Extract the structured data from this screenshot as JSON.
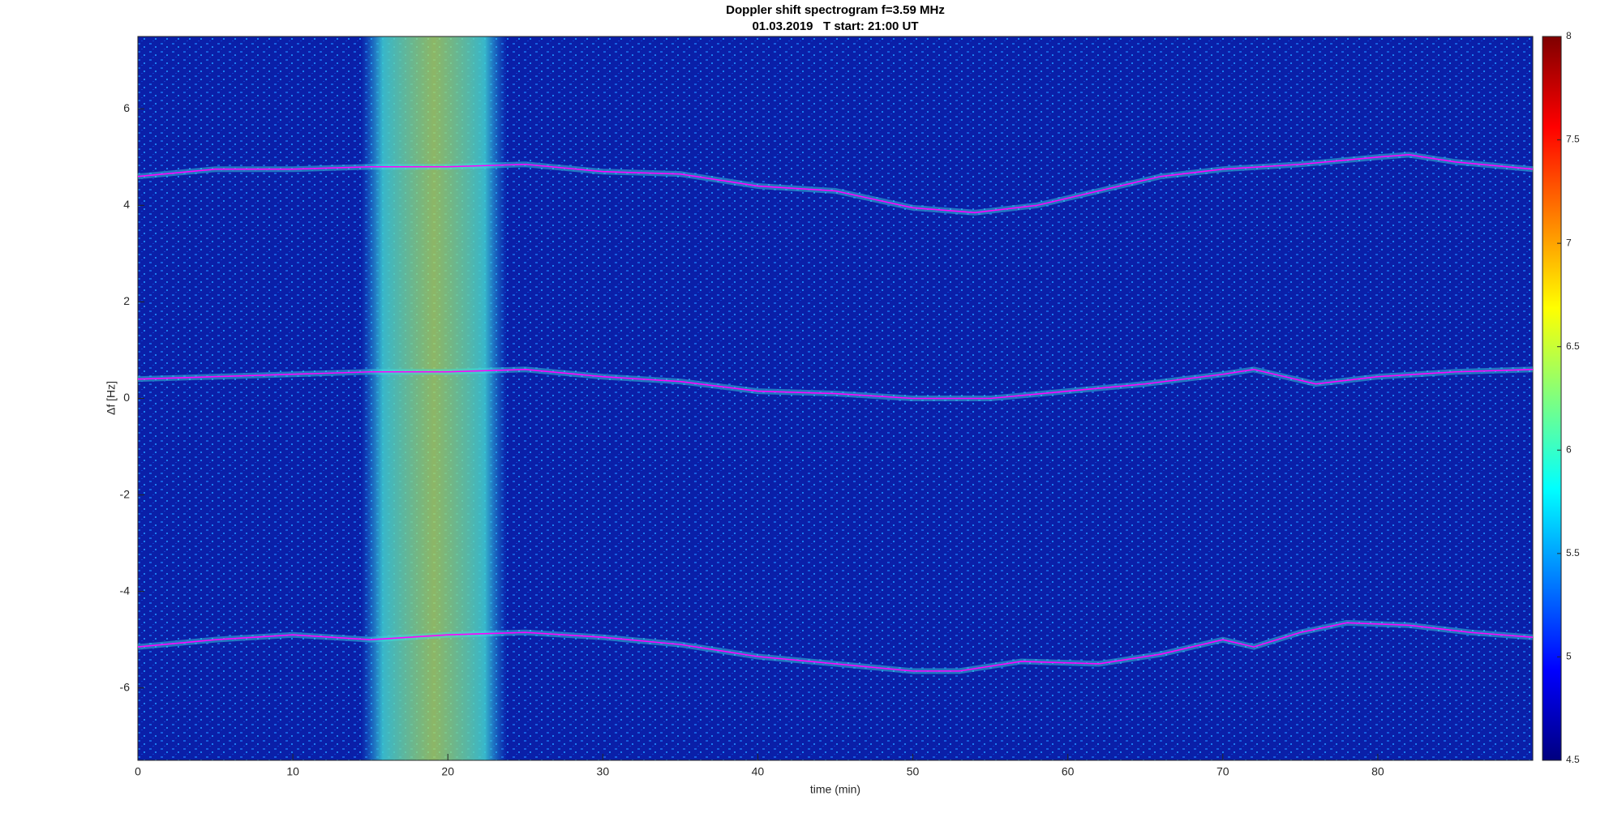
{
  "chart_data": {
    "type": "spectrogram",
    "title": "Doppler shift spectrogram f=3.59 MHz",
    "subtitle": "01.03.2019   T start: 21:00 UT",
    "x_label": "time (min)",
    "y_label": "Δf [Hz]",
    "xlim": [
      0,
      90
    ],
    "xticks": [
      0,
      10,
      20,
      30,
      40,
      50,
      60,
      70,
      80
    ],
    "ylim": [
      -7.5,
      7.5
    ],
    "yticks": [
      -6,
      -4,
      -2,
      0,
      2,
      4,
      6
    ],
    "colorbar": {
      "colormap": "jet",
      "lim": [
        4.5,
        8
      ],
      "ticks": [
        4.5,
        5,
        5.5,
        6,
        6.5,
        7,
        7.5,
        8
      ]
    },
    "series": [
      {
        "color": "#ff00ff",
        "x": [
          0,
          5,
          10,
          15,
          20,
          25,
          30,
          35,
          40,
          45,
          50,
          54,
          58,
          62,
          66,
          70,
          75,
          80,
          82,
          85,
          90
        ],
        "values": [
          4.6,
          4.75,
          4.75,
          4.8,
          4.8,
          4.85,
          4.7,
          4.65,
          4.4,
          4.3,
          3.95,
          3.85,
          4.0,
          4.3,
          4.6,
          4.75,
          4.85,
          5.0,
          5.05,
          4.9,
          4.75
        ]
      },
      {
        "color": "#ff00ff",
        "x": [
          0,
          5,
          10,
          15,
          20,
          25,
          30,
          35,
          40,
          45,
          50,
          55,
          60,
          65,
          70,
          72,
          76,
          80,
          85,
          90
        ],
        "values": [
          0.4,
          0.45,
          0.5,
          0.55,
          0.55,
          0.6,
          0.45,
          0.35,
          0.15,
          0.1,
          0,
          0,
          0.15,
          0.3,
          0.5,
          0.6,
          0.3,
          0.45,
          0.55,
          0.6
        ]
      },
      {
        "color": "#ff00ff",
        "x": [
          0,
          5,
          10,
          15,
          20,
          25,
          30,
          35,
          40,
          45,
          50,
          53,
          57,
          62,
          66,
          70,
          72,
          75,
          78,
          82,
          86,
          90
        ],
        "values": [
          -5.15,
          -5.0,
          -4.9,
          -5.0,
          -4.9,
          -4.85,
          -4.95,
          -5.1,
          -5.35,
          -5.5,
          -5.65,
          -5.65,
          -5.45,
          -5.5,
          -5.3,
          -5.0,
          -5.15,
          -4.85,
          -4.65,
          -4.7,
          -4.85,
          -4.95
        ]
      }
    ]
  }
}
